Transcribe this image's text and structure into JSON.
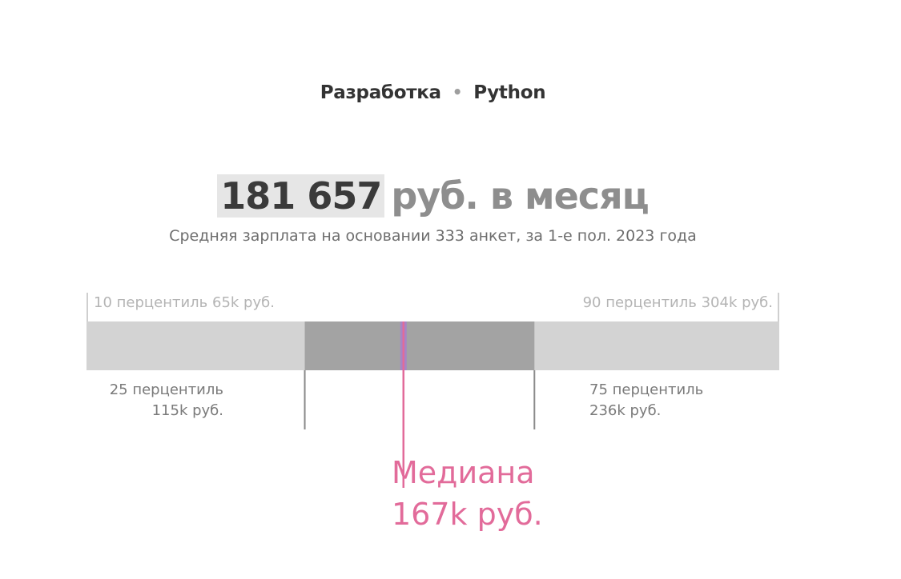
{
  "breadcrumb": {
    "category": "Разработка",
    "separator": "•",
    "skill": "Python"
  },
  "headline": {
    "amount": "181 657",
    "unit": "руб. в месяц"
  },
  "subtitle": "Средняя зарплата на основании 333 анкет, за 1-е пол. 2023 года",
  "colors": {
    "outer_band": "#d3d3d3",
    "inner_band": "#a3a3a3",
    "median": "#e26b9a",
    "median_fill": "#a685c6",
    "tick": "#cfcfcf",
    "tick_dark": "#8a8a8a"
  },
  "chart_data": {
    "type": "box-range",
    "unit": "k руб.",
    "xlim": [
      0,
      365
    ],
    "values": {
      "p10": 65,
      "p25": 115,
      "median": 167,
      "p75": 236,
      "p90": 304
    },
    "labels": {
      "p10": "10 перцентиль 65k руб.",
      "p90": "90 перцентиль 304k руб.",
      "p25": [
        "25 перцентиль",
        "115k руб."
      ],
      "p75": [
        "75 перцентиль",
        "236k руб."
      ],
      "median": [
        "Медиана",
        "167k руб."
      ]
    }
  }
}
